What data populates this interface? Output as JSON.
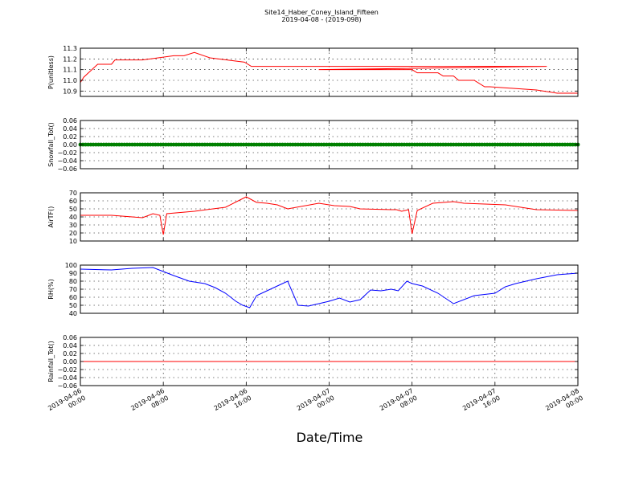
{
  "title": "Site14_Haber_Coney_Island_Fifteen",
  "subtitle": "2019-04-08 - (2019-098)",
  "xlabel": "Date/Time",
  "x_ticks": [
    {
      "line1": "2019-04-06",
      "line2": "00:00"
    },
    {
      "line1": "2019-04-06",
      "line2": "08:00"
    },
    {
      "line1": "2019-04-06",
      "line2": "16:00"
    },
    {
      "line1": "2019-04-07",
      "line2": "00:00"
    },
    {
      "line1": "2019-04-07",
      "line2": "08:00"
    },
    {
      "line1": "2019-04-07",
      "line2": "16:00"
    },
    {
      "line1": "2019-04-08",
      "line2": "00:00"
    }
  ],
  "chart_data": [
    {
      "type": "line",
      "ylabel": "P(unitless)",
      "ylim": [
        10.85,
        11.3
      ],
      "yticks": [
        "10.9",
        "11.0",
        "11.1",
        "11.2",
        "11.3"
      ],
      "ytick_values": [
        10.9,
        11.0,
        11.1,
        11.2,
        11.3
      ],
      "xrange": [
        "2019-04-06 00:00",
        "2019-04-08 00:00"
      ],
      "grid": true,
      "color": "#ff0000",
      "x": [
        "2019-04-06 00:00",
        "2019-04-06 00:20",
        "2019-04-06 01:00",
        "2019-04-06 01:40",
        "2019-04-06 03:00",
        "2019-04-06 03:20",
        "2019-04-06 06:00",
        "2019-04-06 09:00",
        "2019-04-06 10:00",
        "2019-04-06 11:00",
        "2019-04-06 12:30",
        "2019-04-06 15:50",
        "2019-04-06 16:30",
        "2019-04-07 21:00",
        "2019-04-06 23:00",
        "2019-04-07 04:00",
        "2019-04-07 08:00",
        "2019-04-07 08:30",
        "2019-04-07 10:30",
        "2019-04-07 11:00",
        "2019-04-07 12:00",
        "2019-04-07 12:30",
        "2019-04-07 14:00",
        "2019-04-07 15:00",
        "2019-04-07 15:30",
        "2019-04-07 20:00",
        "2019-04-07 22:00",
        "2019-04-08 00:00"
      ],
      "y": [
        10.98,
        11.03,
        11.09,
        11.15,
        11.15,
        11.19,
        11.19,
        11.23,
        11.23,
        11.26,
        11.21,
        11.17,
        11.13,
        11.13,
        11.1,
        11.1,
        11.1,
        11.07,
        11.07,
        11.04,
        11.04,
        11.0,
        11.0,
        10.94,
        10.94,
        10.91,
        10.88,
        10.88
      ]
    },
    {
      "type": "scatter",
      "ylabel": "Snowfall_Tot()",
      "ylim": [
        -0.06,
        0.06
      ],
      "yticks": [
        "−0.06",
        "−0.04",
        "−0.02",
        "0.00",
        "0.02",
        "0.04",
        "0.06"
      ],
      "ytick_values": [
        -0.06,
        -0.04,
        -0.02,
        0.0,
        0.02,
        0.04,
        0.06
      ],
      "xrange": [
        "2019-04-06 00:00",
        "2019-04-08 00:00"
      ],
      "grid": true,
      "color": "#008000",
      "constant_value": 0.0,
      "interval_minutes": 15
    },
    {
      "type": "line",
      "ylabel": "AirTF()",
      "ylim": [
        10,
        70
      ],
      "yticks": [
        "10",
        "20",
        "30",
        "40",
        "50",
        "60",
        "70"
      ],
      "ytick_values": [
        10,
        20,
        30,
        40,
        50,
        60,
        70
      ],
      "xrange": [
        "2019-04-06 00:00",
        "2019-04-08 00:00"
      ],
      "grid": true,
      "color": "#ff0000",
      "x": [
        "2019-04-06 00:00",
        "2019-04-06 03:00",
        "2019-04-06 05:00",
        "2019-04-06 06:00",
        "2019-04-06 07:00",
        "2019-04-06 07:40",
        "2019-04-06 08:00",
        "2019-04-06 08:20",
        "2019-04-06 11:00",
        "2019-04-06 14:00",
        "2019-04-06 16:00",
        "2019-04-06 17:00",
        "2019-04-06 18:00",
        "2019-04-06 19:00",
        "2019-04-06 20:00",
        "2019-04-06 23:00",
        "2019-04-07 00:30",
        "2019-04-07 02:00",
        "2019-04-07 03:00",
        "2019-04-07 06:00",
        "2019-04-07 06:30",
        "2019-04-07 07:00",
        "2019-04-07 07:40",
        "2019-04-07 08:00",
        "2019-04-07 08:30",
        "2019-04-07 10:00",
        "2019-04-07 12:00",
        "2019-04-07 13:00",
        "2019-04-07 15:00",
        "2019-04-07 17:00",
        "2019-04-07 20:00",
        "2019-04-08 00:00"
      ],
      "y": [
        42,
        42,
        40,
        39,
        44,
        42,
        18,
        44,
        47,
        52,
        65,
        58,
        57,
        55,
        50,
        57,
        54,
        53,
        50,
        49,
        49,
        47,
        49,
        19,
        48,
        57,
        59,
        57,
        56,
        55,
        49,
        48
      ]
    },
    {
      "type": "line",
      "ylabel": "RH(%)",
      "ylim": [
        40,
        100
      ],
      "yticks": [
        "40",
        "50",
        "60",
        "70",
        "80",
        "90",
        "100"
      ],
      "ytick_values": [
        40,
        50,
        60,
        70,
        80,
        90,
        100
      ],
      "xrange": [
        "2019-04-06 00:00",
        "2019-04-08 00:00"
      ],
      "grid": true,
      "color": "#0000ff",
      "x": [
        "2019-04-06 00:00",
        "2019-04-06 03:00",
        "2019-04-06 05:00",
        "2019-04-06 07:00",
        "2019-04-06 08:00",
        "2019-04-06 09:00",
        "2019-04-06 10:30",
        "2019-04-06 12:00",
        "2019-04-06 13:00",
        "2019-04-06 14:00",
        "2019-04-06 15:00",
        "2019-04-06 15:40",
        "2019-04-06 16:20",
        "2019-04-06 17:00",
        "2019-04-06 18:00",
        "2019-04-06 19:30",
        "2019-04-06 20:00",
        "2019-04-06 21:00",
        "2019-04-06 22:00",
        "2019-04-07 00:00",
        "2019-04-07 01:00",
        "2019-04-07 02:00",
        "2019-04-07 03:00",
        "2019-04-07 04:00",
        "2019-04-07 05:00",
        "2019-04-07 06:00",
        "2019-04-07 06:40",
        "2019-04-07 07:30",
        "2019-04-07 08:00",
        "2019-04-07 09:00",
        "2019-04-07 10:30",
        "2019-04-07 12:00",
        "2019-04-07 14:00",
        "2019-04-07 16:00",
        "2019-04-07 17:00",
        "2019-04-07 18:00",
        "2019-04-07 20:00",
        "2019-04-07 22:00",
        "2019-04-08 00:00"
      ],
      "y": [
        95,
        94,
        96,
        97,
        92,
        87,
        80,
        77,
        72,
        65,
        55,
        50,
        47,
        62,
        68,
        77,
        80,
        50,
        49,
        55,
        59,
        54,
        57,
        69,
        68,
        70,
        68,
        80,
        77,
        74,
        65,
        52,
        62,
        65,
        73,
        77,
        83,
        88,
        90
      ]
    },
    {
      "type": "line",
      "ylabel": "Rainfall_Tot()",
      "ylim": [
        -0.06,
        0.06
      ],
      "yticks": [
        "−0.06",
        "−0.04",
        "−0.02",
        "0.00",
        "0.02",
        "0.04",
        "0.06"
      ],
      "ytick_values": [
        -0.06,
        -0.04,
        -0.02,
        0.0,
        0.02,
        0.04,
        0.06
      ],
      "xrange": [
        "2019-04-06 00:00",
        "2019-04-08 00:00"
      ],
      "grid": true,
      "color": "#ff0000",
      "x": [
        "2019-04-06 00:00",
        "2019-04-08 00:00"
      ],
      "y": [
        0.0,
        0.0
      ]
    }
  ]
}
